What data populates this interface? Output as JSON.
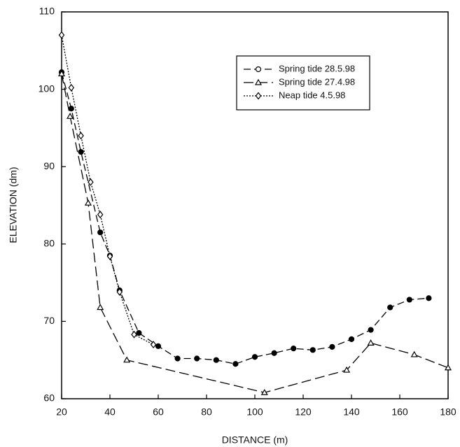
{
  "chart_data": {
    "type": "line",
    "x_label": "DISTANCE (m)",
    "y_label": "ELEVATION (dm)",
    "xlim": [
      20,
      180
    ],
    "xticks": [
      20,
      40,
      60,
      80,
      100,
      120,
      140,
      160,
      180
    ],
    "ylim": [
      60,
      110
    ],
    "yticks": [
      60,
      70,
      80,
      90,
      100,
      110
    ],
    "legend": "upper right",
    "series": [
      {
        "name": "Spring tide 28.5.98",
        "color": "#000000",
        "marker": "circle",
        "dash": "10,5",
        "x": [
          20,
          24,
          28,
          36,
          40,
          44,
          52,
          60,
          68,
          76,
          84,
          92,
          100,
          108,
          116,
          124,
          132,
          140,
          148,
          156,
          164,
          172
        ],
        "values": [
          102.2,
          97.5,
          91.9,
          81.5,
          78.5,
          74,
          68.5,
          66.8,
          65.2,
          65.2,
          65,
          64.5,
          65.4,
          65.9,
          66.5,
          66.3,
          66.7,
          67.7,
          68.9,
          71.8,
          72.8,
          73
        ]
      },
      {
        "name": "Spring tide 27.4.98",
        "color": "#000000",
        "marker": "triangle",
        "dash": "14,6",
        "x": [
          20,
          23.5,
          31,
          36,
          47,
          104,
          138,
          148,
          166,
          180
        ],
        "values": [
          102,
          96.5,
          85.3,
          71.8,
          65,
          60.8,
          63.7,
          67.2,
          65.7,
          64
        ]
      },
      {
        "name": "Neap tide 4.5.98",
        "color": "#000000",
        "marker": "diamond",
        "dash": "2,2",
        "x": [
          20,
          24,
          28,
          32,
          36,
          40,
          44,
          50,
          58
        ],
        "values": [
          107,
          100.2,
          94,
          88,
          83.8,
          78.4,
          73.8,
          68.3,
          67
        ]
      }
    ]
  }
}
